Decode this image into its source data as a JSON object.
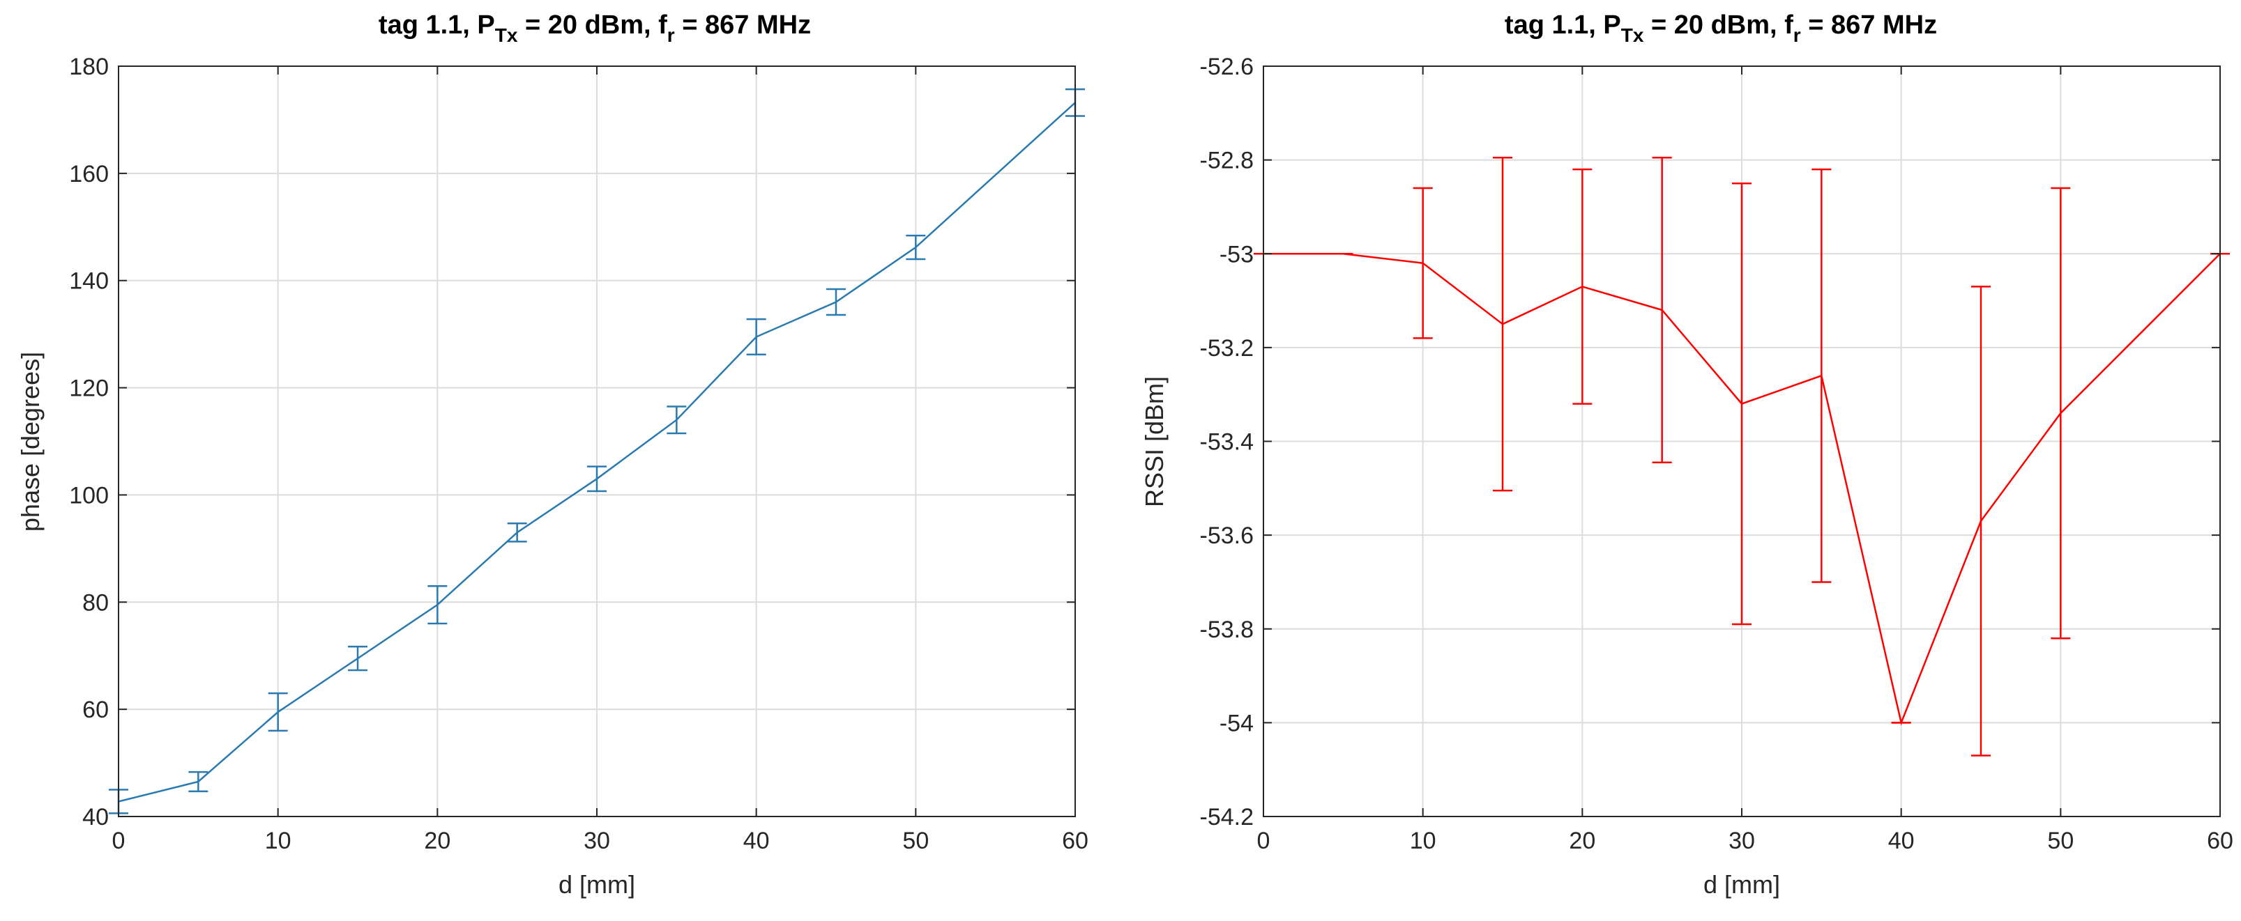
{
  "chart_data": [
    {
      "type": "line",
      "title": {
        "base": "tag 1.1, P",
        "sub1": "Tx",
        "mid": " = 20 dBm, f",
        "sub2": "r",
        "end": " = 867 MHz"
      },
      "xlabel": "d [mm]",
      "ylabel": "phase [degrees]",
      "xlim": [
        0,
        60
      ],
      "ylim": [
        40,
        180
      ],
      "xticks": [
        0,
        10,
        20,
        30,
        40,
        50,
        60
      ],
      "yticks": [
        40,
        60,
        80,
        100,
        120,
        140,
        160,
        180
      ],
      "ytick_labels": [
        "40",
        "60",
        "80",
        "100",
        "120",
        "140",
        "160",
        "180"
      ],
      "grid": true,
      "color": "#2a7ab0",
      "series": [
        {
          "name": "phase",
          "x": [
            0,
            5,
            10,
            15,
            20,
            25,
            30,
            35,
            40,
            45,
            50,
            60
          ],
          "y": [
            42.8,
            46.5,
            59.5,
            69.5,
            79.5,
            93,
            103,
            114,
            129.5,
            136,
            146.2,
            173.2
          ],
          "err": [
            2.2,
            1.8,
            3.5,
            2.2,
            3.5,
            1.7,
            2.3,
            2.5,
            3.3,
            2.4,
            2.2,
            2.5
          ]
        }
      ]
    },
    {
      "type": "line",
      "title": {
        "base": "tag 1.1, P",
        "sub1": "Tx",
        "mid": " = 20 dBm, f",
        "sub2": "r",
        "end": " = 867 MHz"
      },
      "xlabel": "d [mm]",
      "ylabel": "RSSI [dBm]",
      "xlim": [
        0,
        60
      ],
      "ylim": [
        -54.2,
        -52.6
      ],
      "xticks": [
        0,
        10,
        20,
        30,
        40,
        50,
        60
      ],
      "yticks": [
        -54.2,
        -54,
        -53.8,
        -53.6,
        -53.4,
        -53.2,
        -53,
        -52.8,
        -52.6
      ],
      "ytick_labels": [
        "-54.2",
        "-54",
        "-53.8",
        "-53.6",
        "-53.4",
        "-53.2",
        "-53",
        "-52.8",
        "-52.6"
      ],
      "grid": true,
      "color": "#ff0000",
      "series": [
        {
          "name": "RSSI",
          "x": [
            0,
            5,
            10,
            15,
            20,
            25,
            30,
            35,
            40,
            45,
            50,
            60
          ],
          "y": [
            -53,
            -53,
            -53.02,
            -53.15,
            -53.07,
            -53.12,
            -53.32,
            -53.26,
            -54,
            -53.57,
            -53.34,
            -53
          ],
          "err": [
            0,
            0,
            0.16,
            0.355,
            0.25,
            0.325,
            0.47,
            0.44,
            0,
            0.5,
            0.48,
            0
          ]
        }
      ]
    }
  ]
}
